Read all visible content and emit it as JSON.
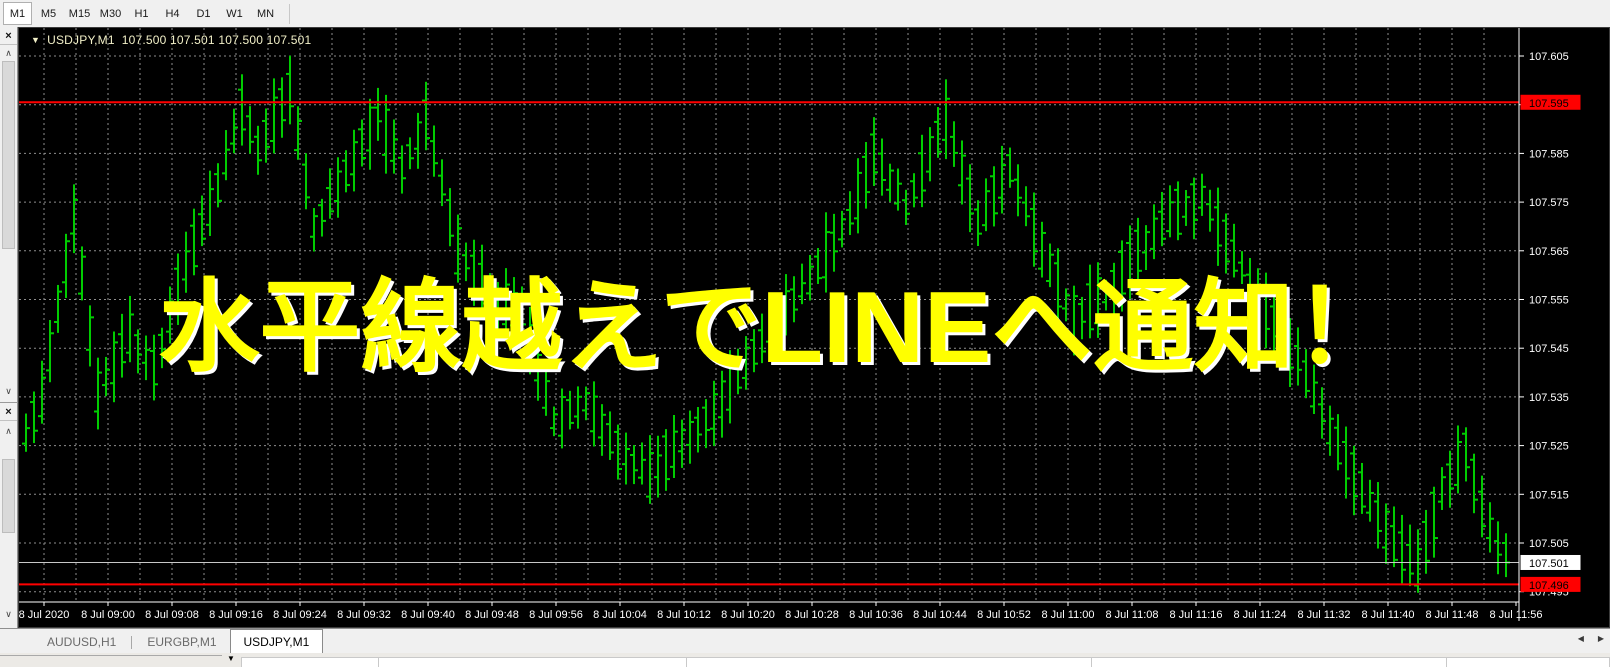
{
  "toolbar": {
    "timeframes": [
      {
        "label": "M1",
        "active": true
      },
      {
        "label": "M5",
        "active": false
      },
      {
        "label": "M15",
        "active": false
      },
      {
        "label": "M30",
        "active": false
      },
      {
        "label": "H1",
        "active": false
      },
      {
        "label": "H4",
        "active": false
      },
      {
        "label": "D1",
        "active": false
      },
      {
        "label": "W1",
        "active": false
      },
      {
        "label": "MN",
        "active": false
      }
    ]
  },
  "icons": {
    "close": "×",
    "scroll_up": "∧",
    "scroll_down": "∨",
    "tab_prev": "◀",
    "tab_next": "▶",
    "dropdown": "▼"
  },
  "chart": {
    "title": {
      "symbol_period": "USDJPY,M1",
      "ohlc": "107.500 107.501 107.500 107.501"
    },
    "overlay_text": "水平線越えでLINEへ通知！",
    "price_axis": {
      "top": 107.605,
      "step": 0.01,
      "count": 12
    },
    "time_labels": [
      "8 Jul 2020",
      "8 Jul 09:00",
      "8 Jul 09:08",
      "8 Jul 09:16",
      "8 Jul 09:24",
      "8 Jul 09:32",
      "8 Jul 09:40",
      "8 Jul 09:48",
      "8 Jul 09:56",
      "8 Jul 10:04",
      "8 Jul 10:12",
      "8 Jul 10:20",
      "8 Jul 10:28",
      "8 Jul 10:36",
      "8 Jul 10:44",
      "8 Jul 10:52",
      "8 Jul 11:00",
      "8 Jul 11:08",
      "8 Jul 11:16",
      "8 Jul 11:24",
      "8 Jul 11:32",
      "8 Jul 11:40",
      "8 Jul 11:48",
      "8 Jul 11:56"
    ],
    "levels": {
      "upper": {
        "price": 107.5955,
        "label": "107.595"
      },
      "bid": {
        "price": 107.501,
        "label": "107.501"
      },
      "lower": {
        "price": 107.4965,
        "label": "107.496"
      }
    },
    "colors": {
      "background": "#000000",
      "grid": "#8e8e8e",
      "bar": "#00cc00",
      "level_line": "#ff0000",
      "bid_line": "#c8c8c8",
      "axis_text": "#ffffff",
      "title_text": "#f2f0c8",
      "overlay_text": "#ffff00",
      "level_label_bg": "#ff0000",
      "bid_label_bg": "#ffffff"
    }
  },
  "chart_data": {
    "type": "ohlc_bar_chart",
    "symbol": "USDJPY",
    "timeframe": "M1",
    "title": "USDJPY,M1",
    "ohlc_current": {
      "open": 107.5,
      "high": 107.501,
      "low": 107.5,
      "close": 107.501
    },
    "ylim": [
      107.493,
      107.61
    ],
    "y_tick": 0.01,
    "x_first_label": "8 Jul 2020",
    "x_last_label": "8 Jul 11:56",
    "bars_visible": 186,
    "horizontal_lines": [
      107.5955,
      107.4965
    ],
    "bid": 107.501,
    "price_path_anchors": [
      [
        0,
        107.527
      ],
      [
        2,
        107.535
      ],
      [
        6,
        107.572
      ],
      [
        9,
        107.536
      ],
      [
        13,
        107.548
      ],
      [
        16,
        107.541
      ],
      [
        20,
        107.562
      ],
      [
        24,
        107.578
      ],
      [
        27,
        107.594
      ],
      [
        29,
        107.586
      ],
      [
        33,
        107.598
      ],
      [
        36,
        107.57
      ],
      [
        40,
        107.581
      ],
      [
        44,
        107.593
      ],
      [
        47,
        107.582
      ],
      [
        50,
        107.592
      ],
      [
        54,
        107.565
      ],
      [
        58,
        107.556
      ],
      [
        62,
        107.552
      ],
      [
        66,
        107.53
      ],
      [
        70,
        107.534
      ],
      [
        74,
        107.524
      ],
      [
        78,
        107.519
      ],
      [
        82,
        107.526
      ],
      [
        86,
        107.532
      ],
      [
        90,
        107.542
      ],
      [
        94,
        107.551
      ],
      [
        98,
        107.559
      ],
      [
        103,
        107.572
      ],
      [
        106,
        107.585
      ],
      [
        110,
        107.574
      ],
      [
        115,
        107.592
      ],
      [
        119,
        107.571
      ],
      [
        123,
        107.582
      ],
      [
        127,
        107.565
      ],
      [
        131,
        107.551
      ],
      [
        135,
        107.556
      ],
      [
        139,
        107.565
      ],
      [
        143,
        107.572
      ],
      [
        147,
        107.576
      ],
      [
        151,
        107.564
      ],
      [
        155,
        107.553
      ],
      [
        159,
        107.543
      ],
      [
        163,
        107.528
      ],
      [
        167,
        107.516
      ],
      [
        171,
        107.505
      ],
      [
        174,
        107.5
      ],
      [
        177,
        107.516
      ],
      [
        180,
        107.524
      ],
      [
        182,
        107.512
      ],
      [
        184,
        107.504
      ],
      [
        185,
        107.501
      ]
    ]
  },
  "tabs": {
    "items": [
      {
        "label": "AUDUSD,H1",
        "active": false
      },
      {
        "label": "EURGBP,M1",
        "active": false
      },
      {
        "label": "USDJPY,M1",
        "active": true
      }
    ]
  }
}
